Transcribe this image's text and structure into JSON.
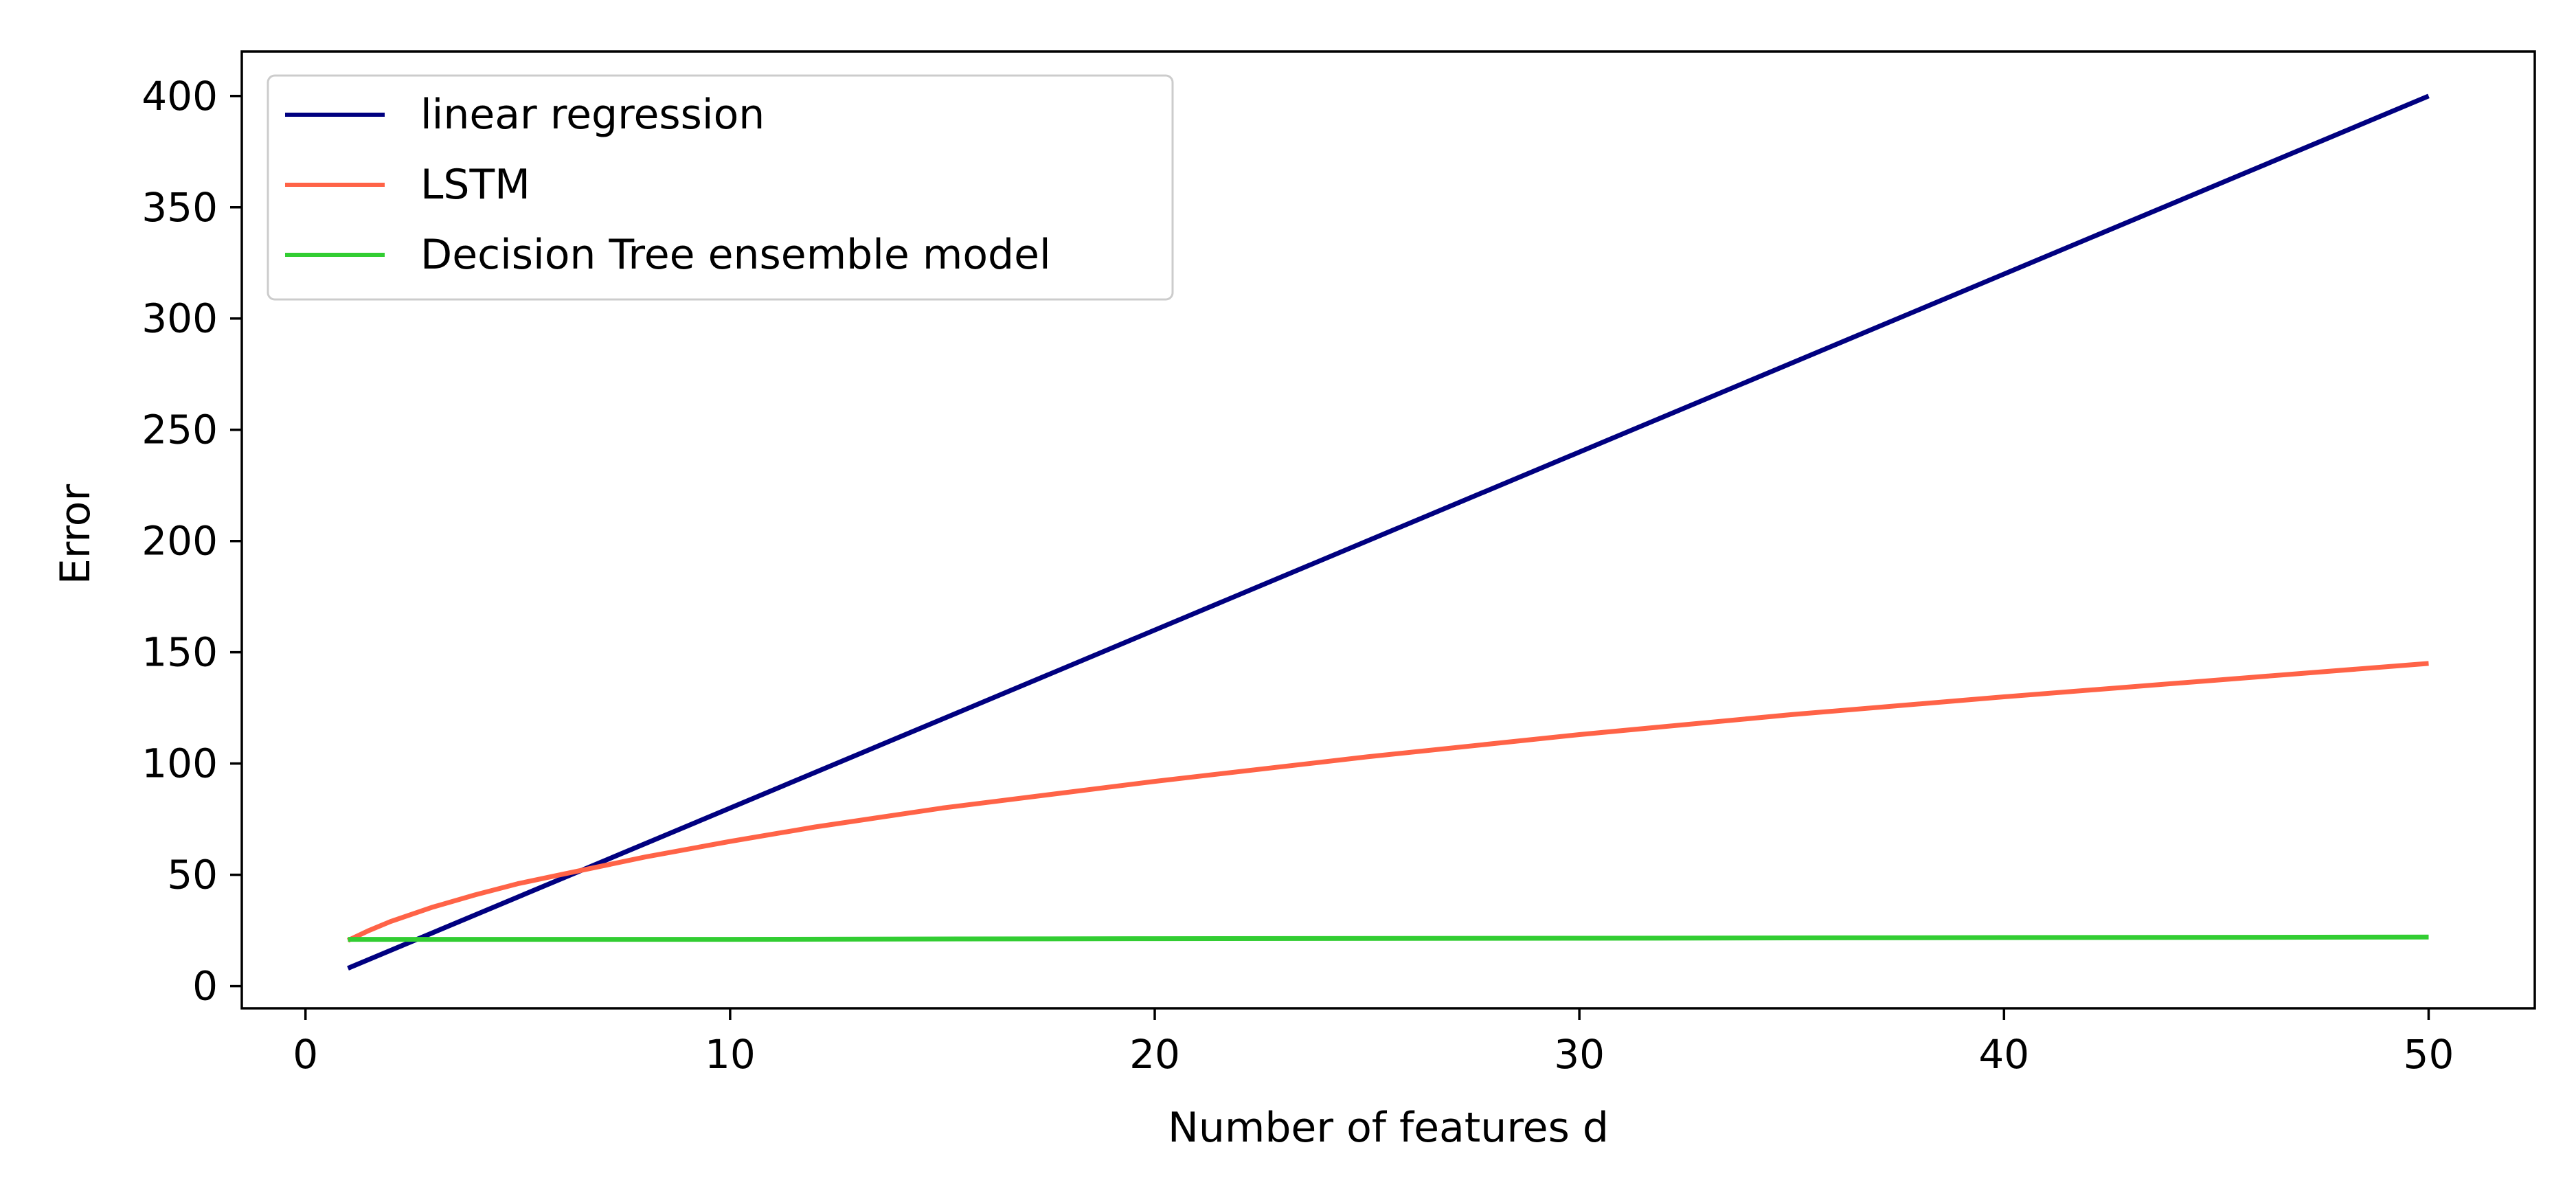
{
  "chart_data": {
    "type": "line",
    "title": "",
    "xlabel": "Number of features d",
    "ylabel": "Error",
    "xlim": [
      -1.5,
      52.5
    ],
    "ylim": [
      -10,
      420
    ],
    "xticks": [
      0,
      10,
      20,
      30,
      40,
      50
    ],
    "yticks": [
      0,
      50,
      100,
      150,
      200,
      250,
      300,
      350,
      400
    ],
    "grid": false,
    "legend_position": "upper-left",
    "series": [
      {
        "name": "linear regression",
        "color": "#000080",
        "x": [
          1,
          50
        ],
        "y": [
          8,
          400
        ]
      },
      {
        "name": "LSTM",
        "color": "#FF6347",
        "x": [
          1,
          1.5,
          2,
          3,
          4,
          5,
          6,
          8,
          10,
          12,
          15,
          20,
          25,
          30,
          35,
          40,
          45,
          50
        ],
        "y": [
          20.5,
          25,
          29,
          35.5,
          41,
          46,
          50,
          58,
          65,
          71.5,
          80,
          92,
          103,
          113,
          122,
          130,
          137.5,
          145
        ]
      },
      {
        "name": "Decision Tree ensemble model",
        "color": "#32CD32",
        "x": [
          1,
          10,
          20,
          30,
          40,
          50
        ],
        "y": [
          21,
          21,
          21.3,
          21.5,
          21.8,
          22
        ]
      }
    ]
  }
}
